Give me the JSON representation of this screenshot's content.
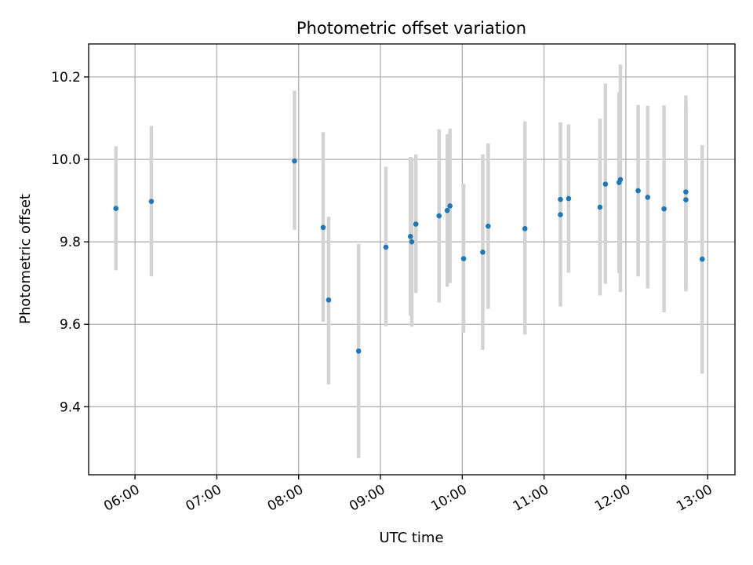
{
  "chart_data": {
    "type": "scatter",
    "title": "Photometric offset variation",
    "xlabel": "UTC time",
    "ylabel": "Photometric offset",
    "xlim": [
      "05:26",
      "13:20"
    ],
    "ylim": [
      9.235,
      10.28
    ],
    "x_ticks": [
      "06:00",
      "07:00",
      "08:00",
      "09:00",
      "10:00",
      "11:00",
      "12:00",
      "13:00"
    ],
    "y_ticks": [
      "9.4",
      "9.6",
      "9.8",
      "10.0",
      "10.2"
    ],
    "grid": true,
    "colors": {
      "point": "#1f77b4",
      "errorbar": "#d3d3d3",
      "grid": "#b0b0b0"
    },
    "points": [
      {
        "x": "05:46",
        "y": 9.881,
        "ylow": 9.731,
        "yhigh": 10.032
      },
      {
        "x": "06:12",
        "y": 9.898,
        "ylow": 9.716,
        "yhigh": 10.081
      },
      {
        "x": "07:57",
        "y": 9.996,
        "ylow": 9.829,
        "yhigh": 10.167
      },
      {
        "x": "08:18",
        "y": 9.835,
        "ylow": 9.606,
        "yhigh": 10.066
      },
      {
        "x": "08:22",
        "y": 9.659,
        "ylow": 9.454,
        "yhigh": 9.861
      },
      {
        "x": "08:44",
        "y": 9.535,
        "ylow": 9.276,
        "yhigh": 9.795
      },
      {
        "x": "09:04",
        "y": 9.787,
        "ylow": 9.595,
        "yhigh": 9.982
      },
      {
        "x": "09:22",
        "y": 9.813,
        "ylow": 9.621,
        "yhigh": 10.006
      },
      {
        "x": "09:23",
        "y": 9.8,
        "ylow": 9.594,
        "yhigh": 10.004
      },
      {
        "x": "09:26",
        "y": 9.843,
        "ylow": 9.676,
        "yhigh": 10.012
      },
      {
        "x": "09:43",
        "y": 9.863,
        "ylow": 9.653,
        "yhigh": 10.073
      },
      {
        "x": "09:49",
        "y": 9.876,
        "ylow": 9.691,
        "yhigh": 10.061
      },
      {
        "x": "09:51",
        "y": 9.887,
        "ylow": 9.7,
        "yhigh": 10.075
      },
      {
        "x": "10:01",
        "y": 9.759,
        "ylow": 9.58,
        "yhigh": 9.941
      },
      {
        "x": "10:15",
        "y": 9.775,
        "ylow": 9.538,
        "yhigh": 10.012
      },
      {
        "x": "10:19",
        "y": 9.838,
        "ylow": 9.637,
        "yhigh": 10.039
      },
      {
        "x": "10:46",
        "y": 9.832,
        "ylow": 9.575,
        "yhigh": 10.092
      },
      {
        "x": "11:12",
        "y": 9.903,
        "ylow": 9.717,
        "yhigh": 10.09
      },
      {
        "x": "11:12",
        "y": 9.866,
        "ylow": 9.643,
        "yhigh": 10.089
      },
      {
        "x": "11:18",
        "y": 9.905,
        "ylow": 9.725,
        "yhigh": 10.085
      },
      {
        "x": "11:41",
        "y": 9.884,
        "ylow": 9.67,
        "yhigh": 10.099
      },
      {
        "x": "11:45",
        "y": 9.94,
        "ylow": 9.698,
        "yhigh": 10.184
      },
      {
        "x": "11:55",
        "y": 9.944,
        "ylow": 9.724,
        "yhigh": 10.163
      },
      {
        "x": "11:56",
        "y": 9.951,
        "ylow": 9.678,
        "yhigh": 10.23
      },
      {
        "x": "12:09",
        "y": 9.924,
        "ylow": 9.716,
        "yhigh": 10.132
      },
      {
        "x": "12:16",
        "y": 9.908,
        "ylow": 9.687,
        "yhigh": 10.13
      },
      {
        "x": "12:28",
        "y": 9.88,
        "ylow": 9.629,
        "yhigh": 10.131
      },
      {
        "x": "12:44",
        "y": 9.921,
        "ylow": 9.688,
        "yhigh": 10.155
      },
      {
        "x": "12:44",
        "y": 9.902,
        "ylow": 9.68,
        "yhigh": 10.126
      },
      {
        "x": "12:56",
        "y": 9.758,
        "ylow": 9.48,
        "yhigh": 10.035
      }
    ]
  }
}
